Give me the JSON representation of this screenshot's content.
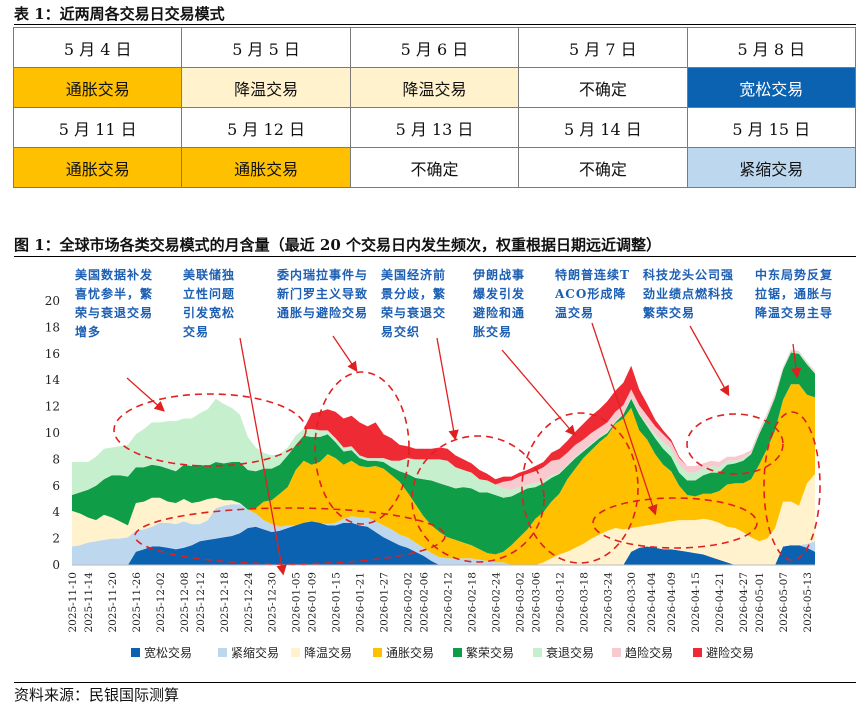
{
  "table": {
    "caption": "表 1：近两周各交易日交易模式",
    "rows": [
      {
        "dates": [
          "5 月 4 日",
          "5 月 5 日",
          "5 月 6 日",
          "5 月 7 日",
          "5 月 8 日"
        ],
        "modes": [
          "通胀交易",
          "降温交易",
          "降温交易",
          "不确定",
          "宽松交易"
        ],
        "mode_keys": [
          "inflation",
          "cooling",
          "cooling",
          "uncertain",
          "easing"
        ]
      },
      {
        "dates": [
          "5 月 11 日",
          "5 月 12 日",
          "5 月 13 日",
          "5 月 14 日",
          "5 月 15 日"
        ],
        "modes": [
          "通胀交易",
          "通胀交易",
          "不确定",
          "不确定",
          "紧缩交易"
        ],
        "mode_keys": [
          "inflation",
          "inflation",
          "uncertain",
          "uncertain",
          "tightening"
        ]
      }
    ],
    "mode_colors": {
      "inflation": "#FFC000",
      "cooling": "#FFF2CC",
      "uncertain": "#FFFFFF",
      "easing": "#0A62B0",
      "tightening": "#BDD7EE"
    },
    "mode_text_colors": {
      "inflation": "#111111",
      "cooling": "#111111",
      "uncertain": "#111111",
      "easing": "#FFFFFF",
      "tightening": "#111111"
    }
  },
  "figure": {
    "caption": "图 1：全球市场各类交易模式的月含量（最近 20 个交易日内发生频次，权重根据日期远近调整）"
  },
  "source": "资料来源：民银国际测算",
  "chart_data": {
    "type": "area",
    "stacked": true,
    "title": "",
    "xlabel": "",
    "ylabel": "",
    "ylim": [
      0,
      20
    ],
    "yticks": [
      0,
      2,
      4,
      6,
      8,
      10,
      12,
      14,
      16,
      18,
      20
    ],
    "grid": false,
    "legend_position": "bottom",
    "x": [
      "2025-11-10",
      "2025-11-12",
      "2025-11-14",
      "2025-11-16",
      "2025-11-18",
      "2025-11-20",
      "2025-11-22",
      "2025-11-24",
      "2025-11-26",
      "2025-11-28",
      "2025-11-30",
      "2025-12-02",
      "2025-12-04",
      "2025-12-06",
      "2025-12-08",
      "2025-12-10",
      "2025-12-12",
      "2025-12-14",
      "2025-12-16",
      "2025-12-18",
      "2025-12-20",
      "2025-12-22",
      "2025-12-24",
      "2025-12-26",
      "2025-12-28",
      "2025-12-30",
      "2026-01-01",
      "2026-01-03",
      "2026-01-05",
      "2026-01-07",
      "2026-01-09",
      "2026-01-11",
      "2026-01-13",
      "2026-01-15",
      "2026-01-17",
      "2026-01-19",
      "2026-01-21",
      "2026-01-23",
      "2026-01-25",
      "2026-01-27",
      "2026-01-29",
      "2026-01-31",
      "2026-02-02",
      "2026-02-04",
      "2026-02-06",
      "2026-02-08",
      "2026-02-10",
      "2026-02-12",
      "2026-02-14",
      "2026-02-16",
      "2026-02-18",
      "2026-02-20",
      "2026-02-22",
      "2026-02-24",
      "2026-02-26",
      "2026-02-28",
      "2026-03-02",
      "2026-03-04",
      "2026-03-06",
      "2026-03-08",
      "2026-03-10",
      "2026-03-12",
      "2026-03-14",
      "2026-03-16",
      "2026-03-18",
      "2026-03-20",
      "2026-03-22",
      "2026-03-24",
      "2026-03-26",
      "2026-03-28",
      "2026-03-30",
      "2026-04-01",
      "2026-04-03",
      "2026-04-05",
      "2026-04-07",
      "2026-04-09",
      "2026-04-11",
      "2026-04-13",
      "2026-04-15",
      "2026-04-17",
      "2026-04-19",
      "2026-04-21",
      "2026-04-23",
      "2026-04-25",
      "2026-04-27",
      "2026-04-29",
      "2026-05-01",
      "2026-05-03",
      "2026-05-05",
      "2026-05-07",
      "2026-05-09",
      "2026-05-11",
      "2026-05-13",
      "2026-05-15"
    ],
    "x_tick_labels": [
      "2025-11-10",
      "2025-11-14",
      "2025-11-20",
      "2025-11-26",
      "2025-12-02",
      "2025-12-08",
      "2025-12-12",
      "2025-12-18",
      "2025-12-24",
      "2025-12-30",
      "2026-01-05",
      "2026-01-09",
      "2026-01-15",
      "2026-01-21",
      "2026-01-27",
      "2026-02-02",
      "2026-02-06",
      "2026-02-12",
      "2026-02-18",
      "2026-02-24",
      "2026-03-02",
      "2026-03-06",
      "2026-03-12",
      "2026-03-18",
      "2026-03-24",
      "2026-03-30",
      "2026-04-04",
      "2026-04-09",
      "2026-04-15",
      "2026-04-21",
      "2026-04-27",
      "2026-05-01",
      "2026-05-07",
      "2026-05-13"
    ],
    "series": [
      {
        "name": "宽松交易",
        "color": "#0A62B0",
        "values": [
          0,
          0,
          0,
          0,
          0,
          0,
          0,
          0,
          1.0,
          1.2,
          1.4,
          1.4,
          1.3,
          1.2,
          1.3,
          1.5,
          1.8,
          1.9,
          2.0,
          2.1,
          2.2,
          2.4,
          2.8,
          2.9,
          2.7,
          2.5,
          2.6,
          2.8,
          3.0,
          3.2,
          3.3,
          3.2,
          3.0,
          3.0,
          3.2,
          3.2,
          3.0,
          2.9,
          2.5,
          2.1,
          1.8,
          1.5,
          1.3,
          1.0,
          0.7,
          0.3,
          0,
          0,
          0,
          0,
          0,
          0,
          0,
          0,
          0,
          0,
          0,
          0,
          0,
          0,
          0,
          0,
          0,
          0,
          0,
          0,
          0,
          0,
          0,
          0,
          1.0,
          1.3,
          1.4,
          1.3,
          1.2,
          1.2,
          1.1,
          1.0,
          0.9,
          0.8,
          0.6,
          0.4,
          0.2,
          0,
          0,
          0,
          0,
          0,
          0,
          1.4,
          1.5,
          1.5,
          1.3,
          1.0
        ]
      },
      {
        "name": "紧缩交易",
        "color": "#BDD7EE",
        "values": [
          1.4,
          1.5,
          1.7,
          1.8,
          1.9,
          2.0,
          2.0,
          2.1,
          1.6,
          1.5,
          1.5,
          1.8,
          1.9,
          1.9,
          2.0,
          1.6,
          1.3,
          1.5,
          2.3,
          2.4,
          2.4,
          2.2,
          1.4,
          1.0,
          0.7,
          0.6,
          0.3,
          0.2,
          0,
          0,
          0,
          0,
          0.1,
          0.2,
          0.3,
          0.5,
          0.6,
          0.7,
          0.8,
          0.9,
          0.9,
          0.8,
          0.8,
          0.7,
          0.6,
          0.6,
          0.6,
          0.5,
          0.5,
          0.5,
          0.5,
          0.4,
          0.3,
          0.2,
          0.2,
          0,
          0,
          0,
          0,
          0,
          0,
          0,
          0,
          0,
          0,
          0,
          0,
          0,
          0,
          0,
          0,
          0,
          0,
          0,
          0,
          0,
          0,
          0,
          0,
          0,
          0,
          0,
          0,
          0,
          0,
          0,
          0,
          0,
          0,
          0,
          0,
          0,
          0.3,
          0.8
        ]
      },
      {
        "name": "降温交易",
        "color": "#FFF2CC",
        "values": [
          2.7,
          2.4,
          1.9,
          1.6,
          1.9,
          1.6,
          1.3,
          0.9,
          2.1,
          2.1,
          2.2,
          1.9,
          1.6,
          1.6,
          1.7,
          1.6,
          1.7,
          1.6,
          0.8,
          0.4,
          0.3,
          0.1,
          0,
          0,
          0,
          0,
          0,
          0,
          0,
          0,
          0,
          0,
          0,
          0,
          0,
          0,
          0,
          0,
          0,
          0,
          0,
          0,
          0,
          0,
          0,
          0,
          0,
          0,
          0,
          0,
          0,
          0,
          0,
          0,
          0,
          0,
          0,
          0,
          0,
          0.2,
          0.5,
          0.8,
          1.0,
          1.3,
          1.6,
          2.0,
          2.3,
          2.6,
          2.8,
          2.7,
          1.8,
          1.6,
          1.6,
          1.8,
          2.0,
          2.1,
          2.3,
          2.4,
          2.5,
          2.7,
          2.8,
          2.8,
          2.7,
          2.8,
          2.5,
          2.1,
          1.8,
          2.0,
          2.8,
          3.4,
          3.3,
          3.0,
          4.6,
          5.1
        ]
      },
      {
        "name": "通胀交易",
        "color": "#FFC000",
        "values": [
          0,
          0,
          0,
          0,
          0,
          0,
          0,
          0,
          0,
          0,
          0,
          0,
          0,
          0,
          0,
          0,
          0,
          0,
          0,
          0,
          0,
          0,
          0,
          0.4,
          1.4,
          1.8,
          2.5,
          2.9,
          4.2,
          4.7,
          4.3,
          4.6,
          5.3,
          4.9,
          4.1,
          4.2,
          3.9,
          3.8,
          4.2,
          4.3,
          4.1,
          4.0,
          3.4,
          2.9,
          2.4,
          2.1,
          1.9,
          1.6,
          1.4,
          1.2,
          1.0,
          0.8,
          0.6,
          0.6,
          0.8,
          1.5,
          2.1,
          2.7,
          3.5,
          3.8,
          4.3,
          4.6,
          5.5,
          6.0,
          6.5,
          6.7,
          7.0,
          7.2,
          7.9,
          8.4,
          9.1,
          7.3,
          6.5,
          5.3,
          4.4,
          3.8,
          2.6,
          1.9,
          1.8,
          1.9,
          2.0,
          2.4,
          3.2,
          3.4,
          3.7,
          4.4,
          5.8,
          6.8,
          7.4,
          7.7,
          8.9,
          9.2,
          6.7,
          5.8
        ]
      },
      {
        "name": "繁荣交易",
        "color": "#0F9D48",
        "values": [
          1.2,
          1.6,
          2.1,
          2.6,
          2.7,
          3.2,
          3.5,
          3.7,
          2.7,
          2.6,
          2.5,
          2.4,
          2.5,
          2.4,
          2.6,
          2.8,
          2.8,
          2.5,
          2.7,
          2.8,
          2.9,
          3.1,
          3.0,
          2.8,
          2.5,
          2.4,
          2.2,
          2.4,
          1.9,
          1.9,
          2.1,
          1.9,
          1.5,
          1.2,
          1.0,
          0.8,
          0.6,
          0.5,
          0.4,
          0.5,
          0.6,
          0.8,
          1.4,
          2.0,
          2.8,
          3.4,
          3.7,
          3.9,
          3.9,
          4.2,
          4.3,
          4.3,
          4.6,
          4.5,
          4.1,
          3.7,
          3.4,
          3.1,
          2.4,
          2.2,
          1.8,
          1.5,
          1.0,
          0.8,
          0.5,
          0.4,
          0.3,
          0.2,
          0.1,
          0.3,
          0.7,
          1.2,
          1.0,
          1.2,
          1.2,
          1.1,
          1.0,
          1.1,
          1.2,
          1.4,
          1.6,
          1.4,
          1.5,
          1.5,
          1.7,
          1.9,
          2.3,
          2.4,
          2.5,
          2.3,
          2.4,
          2.3,
          2.3,
          1.8
        ]
      },
      {
        "name": "衰退交易",
        "color": "#C6EFCE",
        "values": [
          2.5,
          2.3,
          2.1,
          2.2,
          2.3,
          2.1,
          2.2,
          2.4,
          2.5,
          2.9,
          3.2,
          3.3,
          3.6,
          3.8,
          3.5,
          3.6,
          3.9,
          4.3,
          4.8,
          4.5,
          4.1,
          3.6,
          2.5,
          1.8,
          1.2,
          1.0,
          0.8,
          0.6,
          0.7,
          0.5,
          0.6,
          0.5,
          0.3,
          0.3,
          0.3,
          0.3,
          0.2,
          0.2,
          0.2,
          0.3,
          0.5,
          0.8,
          1.2,
          1.4,
          1.5,
          1.6,
          1.8,
          1.9,
          1.6,
          1.3,
          1.2,
          1.0,
          0.9,
          0.8,
          0.7,
          0.5,
          0.4,
          0.3,
          0.3,
          0.2,
          0.2,
          0.1,
          0.1,
          0.1,
          0.1,
          0.1,
          0.1,
          0.1,
          0.1,
          0.1,
          0.1,
          0.1,
          0.2,
          0.3,
          0.5,
          0.6,
          0.6,
          0.6,
          0.6,
          0.5,
          0.5,
          0.4,
          0.3,
          0.2,
          0.2,
          0.1,
          0.1,
          0.1,
          0.1,
          0.1,
          0.1,
          0.1,
          0.1,
          0.1
        ]
      },
      {
        "name": "趋险交易",
        "color": "#F8C9CF",
        "values": [
          0,
          0,
          0,
          0,
          0,
          0,
          0,
          0,
          0,
          0,
          0,
          0,
          0,
          0,
          0,
          0,
          0,
          0,
          0,
          0,
          0,
          0,
          0,
          0,
          0,
          0,
          0,
          0,
          0,
          0,
          0,
          0,
          0,
          0,
          0,
          0,
          0,
          0,
          0,
          0,
          0,
          0,
          0,
          0,
          0,
          0,
          0,
          0,
          0,
          0,
          0,
          0,
          0,
          0,
          0.5,
          0.7,
          0.8,
          0.8,
          0.9,
          1.0,
          1.1,
          1.0,
          0.9,
          0.9,
          0.8,
          0.8,
          0.7,
          0.7,
          0.7,
          0.6,
          0.6,
          0.6,
          0.6,
          0.6,
          0.6,
          0.5,
          0.5,
          0.5,
          0.5,
          0.4,
          0.4,
          0.4,
          0.3,
          0.3,
          0.3,
          0.2,
          0.2,
          0.2,
          0.2,
          0.1,
          0.1,
          0.1,
          0.1,
          0.1
        ]
      },
      {
        "name": "避险交易",
        "color": "#EE2A35",
        "values": [
          0,
          0,
          0,
          0,
          0,
          0,
          0,
          0,
          0,
          0,
          0,
          0,
          0,
          0,
          0,
          0,
          0,
          0,
          0,
          0,
          0,
          0,
          0,
          0,
          0,
          0,
          0,
          0,
          0,
          0,
          1.2,
          1.4,
          1.6,
          2.0,
          2.2,
          2.3,
          2.5,
          2.4,
          2.7,
          1.8,
          1.7,
          1.2,
          0.9,
          0.8,
          0.8,
          0.8,
          0.9,
          0.9,
          0.9,
          0.8,
          0.7,
          0.7,
          0.5,
          0.4,
          0.4,
          0.3,
          0.3,
          0.3,
          0.4,
          0.4,
          0.6,
          0.8,
          0.9,
          1.0,
          1.2,
          1.3,
          1.4,
          1.6,
          1.6,
          1.7,
          1.8,
          1.2,
          0.9,
          0.5,
          0.3,
          0.2,
          0.1,
          0,
          0,
          0,
          0,
          0,
          0,
          0,
          0,
          0,
          0,
          0,
          0,
          0,
          0,
          0,
          0,
          0
        ]
      }
    ],
    "annotations": [
      "美国数据补发喜忧参半，繁荣与衰退交易增多",
      "美联储独立性问题引发宽松交易",
      "委内瑞拉事件与新门罗主义导致通胀与避险交易",
      "美国经济前景分歧，繁荣与衰退交易交织",
      "伊朗战事爆发引发避险和通胀交易",
      "特朗普连续TACO形成降温交易",
      "科技龙头公司强劲业绩点燃科技繁荣交易",
      "中东局势反复拉锯，通胀与降温交易主导"
    ]
  }
}
